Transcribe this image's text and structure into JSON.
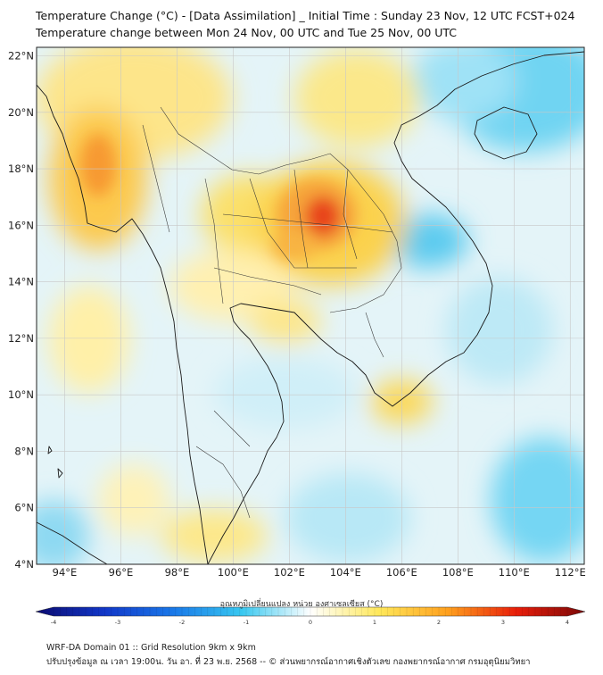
{
  "header": {
    "title_line1": "Temperature Change (°C) - [Data Assimilation] _ Initial Time : Sunday 23 Nov, 12 UTC FCST+024",
    "title_line2": "Temperature change between Mon 24 Nov, 00 UTC and Tue 25 Nov, 00 UTC"
  },
  "map": {
    "lat_labels": [
      "22°N",
      "20°N",
      "18°N",
      "16°N",
      "14°N",
      "12°N",
      "10°N",
      "8°N",
      "6°N",
      "4°N"
    ],
    "lon_labels": [
      "94°E",
      "96°E",
      "98°E",
      "100°E",
      "102°E",
      "104°E",
      "106°E",
      "108°E",
      "110°E",
      "112°E"
    ],
    "extent": {
      "lon_min": 93,
      "lon_max": 112.5,
      "lat_min": 4,
      "lat_max": 22.3
    },
    "gridlines": true,
    "colors": {
      "ocean_base": "#d8f1fa",
      "land_base": "#fbf6d4",
      "border": "#222222",
      "grid": "#c8c8c8"
    }
  },
  "colorbar": {
    "title": "อุณหภูมิเปลี่ยนแปลง หน่วย องศาเซลเซียส (°C)",
    "min": -4,
    "max": 4,
    "ticks": [
      "-4",
      "-3",
      "-2",
      "-1",
      "0",
      "1",
      "2",
      "3",
      "4"
    ],
    "palette": [
      "#0b0b70",
      "#1237c8",
      "#1a78e8",
      "#38c8f0",
      "#ffffff",
      "#ffe85a",
      "#ffa01e",
      "#e81e0a",
      "#7a0808"
    ]
  },
  "footer": {
    "line1": "WRF-DA Domain 01 :: Grid Resolution 9km x 9km",
    "line2": "ปรับปรุงข้อมูล ณ เวลา 19:00น. วัน อา. ที่ 23 พ.ย. 2568 -- © ส่วนพยากรณ์อากาศเชิงตัวเลข กองพยากรณ์อากาศ กรมอุตุนิยมวิทยา"
  }
}
